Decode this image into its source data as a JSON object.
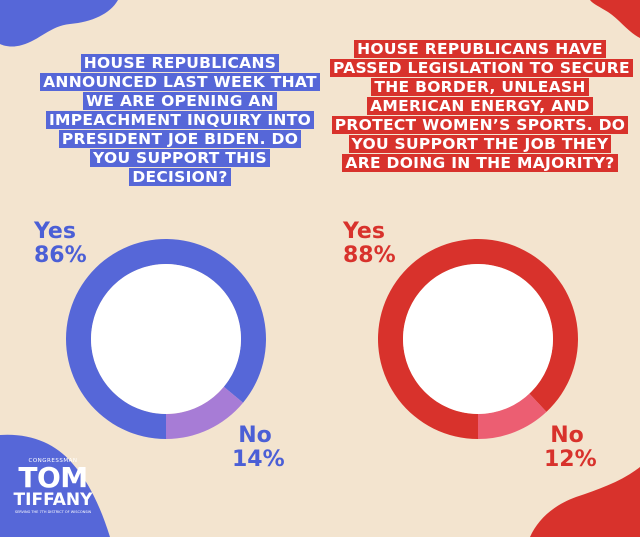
{
  "colors": {
    "background": "#f3e4cf",
    "blue": "#5667d8",
    "blue_light": "#a77cd6",
    "red": "#d8322c",
    "red_light": "#ec5e72"
  },
  "chart_data": [
    {
      "type": "pie",
      "style": "donut",
      "title": "HOUSE REPUBLICANS ANNOUNCED LAST WEEK THAT WE ARE OPENING AN IMPEACHMENT INQUIRY INTO PRESIDENT JOE BIDEN. DO YOU SUPPORT THIS DECISION?",
      "categories": [
        "Yes",
        "No"
      ],
      "values": [
        86,
        14
      ],
      "value_labels": [
        "86%",
        "14%"
      ],
      "colors": [
        "#5667d8",
        "#a77cd6"
      ]
    },
    {
      "type": "pie",
      "style": "donut",
      "title": "HOUSE REPUBLICANS HAVE PASSED LEGISLATION TO SECURE THE BORDER, UNLEASH AMERICAN ENERGY, AND PROTECT WOMEN’S SPORTS. DO YOU SUPPORT THE JOB THEY ARE DOING IN THE MAJORITY?",
      "categories": [
        "Yes",
        "No"
      ],
      "values": [
        88,
        12
      ],
      "value_labels": [
        "88%",
        "12%"
      ],
      "colors": [
        "#d8322c",
        "#ec5e72"
      ]
    }
  ],
  "logo": {
    "top": "CONGRESSMAN",
    "name1": "TOM",
    "name2": "TIFFANY",
    "tagline": "SERVING THE 7TH DISTRICT OF WISCONSIN"
  }
}
